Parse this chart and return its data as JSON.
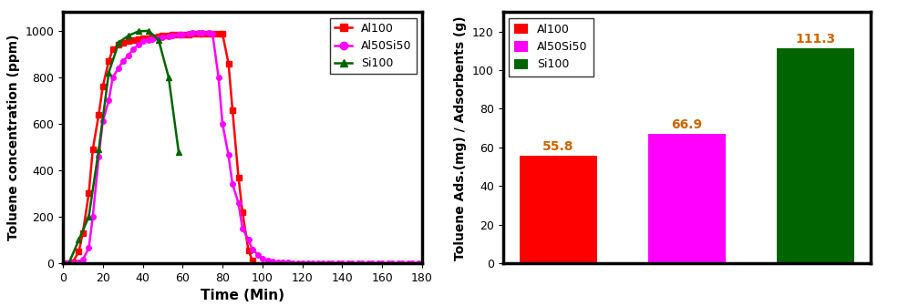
{
  "line_chart": {
    "Al100": {
      "color": "#ff0000",
      "marker": "s",
      "x": [
        2,
        5,
        8,
        10,
        13,
        15,
        18,
        20,
        23,
        25,
        28,
        30,
        33,
        35,
        38,
        40,
        43,
        45,
        48,
        50,
        53,
        55,
        58,
        60,
        63,
        65,
        68,
        70,
        73,
        75,
        78,
        80,
        83,
        85,
        88,
        90,
        93,
        95
      ],
      "y": [
        0,
        5,
        50,
        130,
        300,
        490,
        640,
        760,
        870,
        920,
        940,
        950,
        955,
        960,
        965,
        968,
        970,
        972,
        975,
        978,
        980,
        982,
        983,
        984,
        985,
        986,
        987,
        988,
        988,
        989,
        989,
        987,
        860,
        660,
        370,
        220,
        55,
        10
      ]
    },
    "Al50Si50": {
      "color": "#ff00ff",
      "marker": "o",
      "x": [
        2,
        5,
        8,
        10,
        13,
        15,
        18,
        20,
        23,
        25,
        28,
        30,
        33,
        35,
        38,
        40,
        43,
        45,
        48,
        50,
        53,
        55,
        58,
        60,
        63,
        65,
        68,
        70,
        73,
        75,
        78,
        80,
        83,
        85,
        88,
        90,
        93,
        95,
        98,
        100,
        103,
        105,
        108,
        110,
        113,
        115,
        118,
        120,
        123,
        125,
        128,
        130,
        133,
        135,
        138,
        140,
        143,
        145,
        148,
        150,
        153,
        155,
        158,
        160,
        163,
        165,
        168,
        170,
        173,
        175,
        178,
        180
      ],
      "y": [
        0,
        0,
        5,
        15,
        65,
        200,
        460,
        610,
        700,
        800,
        840,
        870,
        895,
        920,
        940,
        955,
        960,
        965,
        970,
        972,
        975,
        978,
        982,
        985,
        988,
        990,
        992,
        993,
        990,
        988,
        800,
        600,
        465,
        340,
        260,
        150,
        100,
        60,
        35,
        20,
        12,
        8,
        5,
        3,
        2,
        1,
        1,
        0,
        0,
        0,
        0,
        0,
        0,
        0,
        0,
        0,
        0,
        0,
        0,
        0,
        0,
        0,
        0,
        0,
        0,
        0,
        0,
        0,
        0,
        0,
        0,
        0
      ]
    },
    "Si100": {
      "color": "#006400",
      "marker": "^",
      "x": [
        3,
        8,
        13,
        18,
        23,
        28,
        33,
        38,
        43,
        48,
        53,
        58
      ],
      "y": [
        0,
        100,
        200,
        490,
        820,
        950,
        980,
        998,
        1000,
        960,
        800,
        480
      ]
    },
    "xlabel": "Time (Min)",
    "ylabel": "Toluene concentration (ppm)",
    "xlim": [
      0,
      180
    ],
    "ylim": [
      0,
      1080
    ],
    "xticks": [
      0,
      20,
      40,
      60,
      80,
      100,
      120,
      140,
      160,
      180
    ],
    "yticks": [
      0,
      200,
      400,
      600,
      800,
      1000
    ]
  },
  "bar_chart": {
    "categories": [
      "Al100",
      "Al50Si50",
      "Si100"
    ],
    "values": [
      55.8,
      66.9,
      111.3
    ],
    "colors": [
      "#ff0000",
      "#ff00ff",
      "#006400"
    ],
    "ylabel": "Toluene Ads.(mg) / Adsorbents (g)",
    "ylim": [
      0,
      130
    ],
    "yticks": [
      0,
      20,
      40,
      60,
      80,
      100,
      120
    ],
    "bar_labels": [
      "55.8",
      "66.9",
      "111.3"
    ],
    "label_color": "#cc6600"
  }
}
